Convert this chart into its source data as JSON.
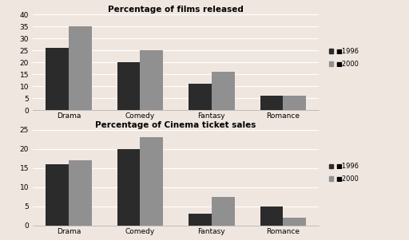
{
  "chart1": {
    "title": "Percentage of films released",
    "categories": [
      "Drama",
      "Comedy",
      "Fantasy",
      "Romance"
    ],
    "values_1996": [
      26,
      20,
      11,
      6
    ],
    "values_2000": [
      35,
      25,
      16,
      6
    ],
    "ylim": [
      0,
      40
    ],
    "yticks": [
      0,
      5,
      10,
      15,
      20,
      25,
      30,
      35,
      40
    ]
  },
  "chart2": {
    "title": "Percentage of Cinema ticket sales",
    "categories": [
      "Drama",
      "Comedy",
      "Fantasy",
      "Romance"
    ],
    "values_1996": [
      16,
      20,
      3,
      5
    ],
    "values_2000": [
      17,
      23,
      7.5,
      2
    ],
    "ylim": [
      0,
      25
    ],
    "yticks": [
      0,
      5,
      10,
      15,
      20,
      25
    ]
  },
  "color_1996": "#2b2b2b",
  "color_2000": "#909090",
  "legend_labels": [
    "1996",
    "2000"
  ],
  "background_color": "#f0e6e0",
  "plot_bg": "#f0e6e0",
  "bar_width": 0.32
}
